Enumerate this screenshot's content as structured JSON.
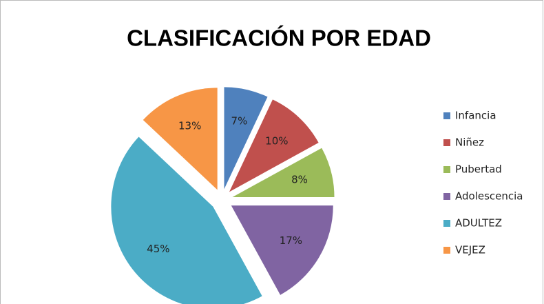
{
  "chart_data": {
    "type": "pie",
    "title": "CLASIFICACIÓN POR EDAD",
    "categories": [
      "Infancia",
      "Niñez",
      "Pubertad",
      "Adolescencia",
      "ADULTEZ",
      "VEJEZ"
    ],
    "values": [
      7,
      10,
      8,
      17,
      45,
      13
    ],
    "value_labels": [
      "7%",
      "10%",
      "8%",
      "17%",
      "45%",
      "13%"
    ],
    "colors": [
      "#4f81bd",
      "#c0504d",
      "#9bbb59",
      "#8064a2",
      "#4bacc6",
      "#f79646"
    ],
    "legend": "right"
  }
}
